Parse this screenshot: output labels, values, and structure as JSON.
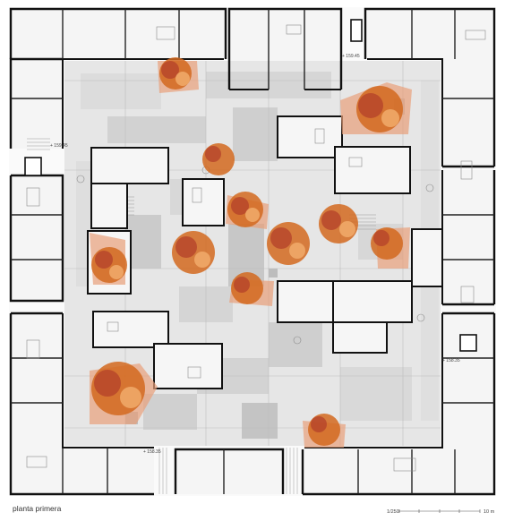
{
  "title": "planta primera",
  "scale": {
    "ratio": "1/250",
    "length": "10 m"
  },
  "level_marks": [
    "+ 159.45",
    "+ 159.45",
    "+ 158.35",
    "+ 158.35"
  ],
  "colors": {
    "wall": "#111111",
    "room_fill": "#f4f4f4",
    "courtyard_fill": "#e3e3e3",
    "paving_dark": "#c9c9c9",
    "tree_orange": "#d2691e",
    "tree_red": "#b5432a",
    "tree_light": "#f0a868",
    "canopy_shadow": "#e8a07a"
  }
}
